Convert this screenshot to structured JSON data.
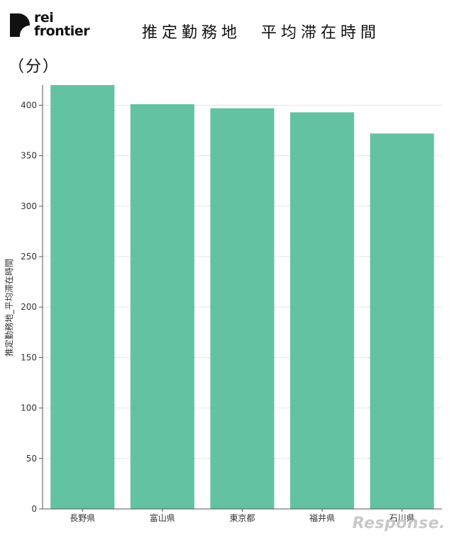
{
  "logo": {
    "line1": "rei",
    "line2": "frontier"
  },
  "header": {
    "title": "推定勤務地　平均滞在時間",
    "unit": "（分）"
  },
  "watermark": "Response.",
  "colors": {
    "bar": "#63c2a1",
    "grid": "#e6e6e6",
    "axis": "#555555"
  },
  "chart_data": {
    "type": "bar",
    "title": "推定勤務地　平均滞在時間",
    "ylabel": "推定勤務地_平均滞在時間",
    "xlabel": "",
    "categories": [
      "長野県",
      "富山県",
      "東京都",
      "福井県",
      "石川県"
    ],
    "values": [
      420,
      401,
      397,
      393,
      372
    ],
    "ylim": [
      0,
      420
    ],
    "yticks": [
      0,
      50,
      100,
      150,
      200,
      250,
      300,
      350,
      400
    ],
    "grid": true,
    "legend": "none"
  }
}
